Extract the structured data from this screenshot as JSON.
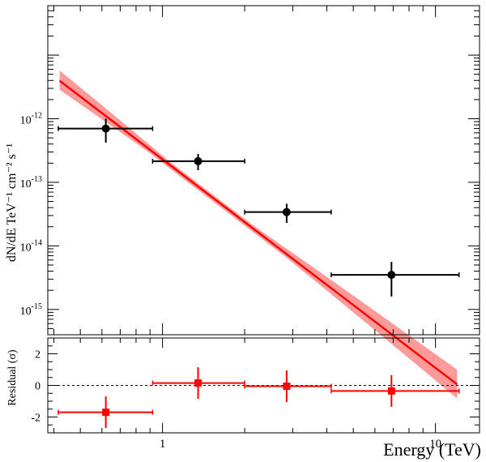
{
  "chart_data": [
    {
      "type": "scatter",
      "panel": "spectrum",
      "ylabel": "dN/dE TeV⁻¹ cm⁻² s⁻¹",
      "xscale": "log",
      "yscale": "log",
      "xlim": [
        0.38,
        14.5
      ],
      "ylim": [
        4e-16,
        6e-11
      ],
      "y_tick_labels": [
        {
          "value": 1e-12,
          "base": "10",
          "exp": "-12"
        },
        {
          "value": 1e-13,
          "base": "10",
          "exp": "-13"
        },
        {
          "value": 1e-14,
          "base": "10",
          "exp": "-14"
        },
        {
          "value": 1e-15,
          "base": "10",
          "exp": "-15"
        }
      ],
      "grid": false,
      "series": [
        {
          "kind": "points_with_errors",
          "color": "#000000",
          "points": [
            {
              "x": 0.62,
              "y": 7e-13,
              "xlo": 0.415,
              "xhi": 0.92,
              "ylo": 4.2e-13,
              "yhi": 1e-12
            },
            {
              "x": 1.35,
              "y": 2.15e-13,
              "xlo": 0.92,
              "xhi": 2.0,
              "ylo": 1.55e-13,
              "yhi": 2.8e-13
            },
            {
              "x": 2.85,
              "y": 3.4e-14,
              "xlo": 2.0,
              "xhi": 4.15,
              "ylo": 2.3e-14,
              "yhi": 4.6e-14
            },
            {
              "x": 6.9,
              "y": 3.5e-15,
              "xlo": 4.15,
              "xhi": 12.2,
              "ylo": 1.6e-15,
              "yhi": 5.6e-15
            }
          ]
        },
        {
          "kind": "power_law_fit",
          "color": "#ff0000",
          "band_color": "#ff9a9a",
          "x_range": [
            0.42,
            12.0
          ],
          "norm_at_1TeV": 2.3e-13,
          "index": 3.28,
          "band_lower_frac": [
            0.72,
            0.9
          ],
          "band_upper_frac": [
            1.45,
            1.1
          ],
          "band_lower_frac_at_end": 0.6,
          "band_upper_frac_at_end": 1.7
        }
      ]
    },
    {
      "type": "scatter",
      "panel": "residual",
      "xlabel": "Energy (TeV)",
      "ylabel": "Residual (σ)",
      "xscale": "log",
      "xlim": [
        0.38,
        14.5
      ],
      "ylim": [
        -3,
        3
      ],
      "x_tick_labels": [
        {
          "value": 1,
          "label": "1"
        },
        {
          "value": 10,
          "label": "10"
        }
      ],
      "y_tick_labels": [
        {
          "value": 2,
          "label": "2"
        },
        {
          "value": 0,
          "label": "0"
        },
        {
          "value": -2,
          "label": "-2"
        }
      ],
      "reference_line": {
        "y": 0,
        "style": "dashed"
      },
      "series": [
        {
          "kind": "points_with_errors",
          "color": "#ff0000",
          "points": [
            {
              "x": 0.62,
              "y": -1.7,
              "xlo": 0.415,
              "xhi": 0.92,
              "ylo": -2.7,
              "yhi": -0.7
            },
            {
              "x": 1.35,
              "y": 0.15,
              "xlo": 0.92,
              "xhi": 2.0,
              "ylo": -0.85,
              "yhi": 1.15
            },
            {
              "x": 2.85,
              "y": -0.05,
              "xlo": 2.0,
              "xhi": 4.15,
              "ylo": -1.05,
              "yhi": 0.95
            },
            {
              "x": 6.9,
              "y": -0.35,
              "xlo": 4.15,
              "xhi": 12.2,
              "ylo": -1.35,
              "yhi": 0.65
            }
          ]
        }
      ]
    }
  ]
}
